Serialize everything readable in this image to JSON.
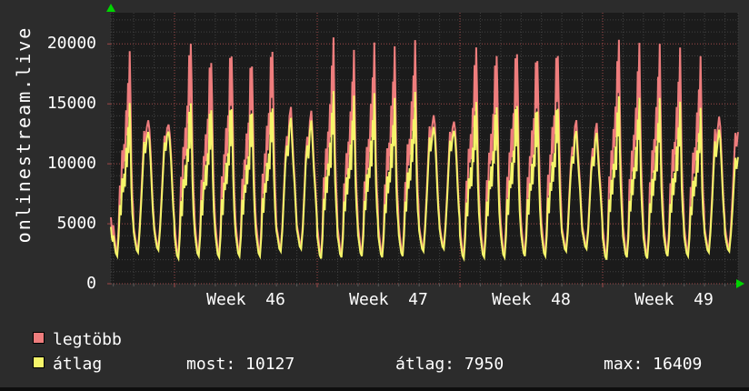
{
  "y_axis_title": "onlinestream.live",
  "legend": {
    "items": [
      {
        "label": "legtöbb",
        "color": "#ee7d7d"
      },
      {
        "label": "átlag",
        "color": "#f5f56a"
      }
    ]
  },
  "stats": {
    "items": [
      {
        "label": "most",
        "value": "10127",
        "text": "most: 10127"
      },
      {
        "label": "átlag",
        "value": "7950",
        "text": "átlag: 7950"
      },
      {
        "label": "max",
        "value": "16409",
        "text": "max: 16409"
      }
    ]
  },
  "chart_data": {
    "type": "line",
    "title": "onlinestream.live",
    "ylabel": "onlinestream.live",
    "ylim": [
      0,
      22600
    ],
    "grid": "dotted, minor every 1000 (gray), major every 5000 (red); vertical minor per day, major per week",
    "legend_position": "bottom-left",
    "y_ticks": [
      {
        "value": 0,
        "label": "0"
      },
      {
        "value": 5000,
        "label": "5000"
      },
      {
        "value": 10000,
        "label": "10000"
      },
      {
        "value": 15000,
        "label": "15000"
      },
      {
        "value": 20000,
        "label": "20000"
      }
    ],
    "y_minor_step": 1000,
    "x_week_labels": [
      "Week  46",
      "Week  47",
      "Week  48",
      "Week  49"
    ],
    "x_unit": "days (4.4 weeks shown, weekly red gridlines at Monday 00:00)",
    "series": [
      {
        "name": "legtöbb",
        "color": "#ee7d7d"
      },
      {
        "name": "átlag",
        "color": "#f5f56a"
      }
    ],
    "lead_in_day": {
      "weekend": false,
      "max_peak": 9000,
      "avg_peak": 7600,
      "trough": 2300
    },
    "days": [
      {
        "weekend": false,
        "max_peak": 18900,
        "avg_peak": 14700,
        "trough": 2300
      },
      {
        "weekend": true,
        "max_peak": 14100,
        "avg_peak": 13100,
        "trough": 2600
      },
      {
        "weekend": true,
        "max_peak": 13800,
        "avg_peak": 13200,
        "trough": 2800
      },
      {
        "weekend": false,
        "max_peak": 20500,
        "avg_peak": 15400,
        "trough": 2100
      },
      {
        "weekend": false,
        "max_peak": 19100,
        "avg_peak": 15000,
        "trough": 2300
      },
      {
        "weekend": false,
        "max_peak": 19800,
        "avg_peak": 15200,
        "trough": 2200
      },
      {
        "weekend": false,
        "max_peak": 18900,
        "avg_peak": 14800,
        "trough": 2300
      },
      {
        "weekend": false,
        "max_peak": 20000,
        "avg_peak": 15100,
        "trough": 2300
      },
      {
        "weekend": true,
        "max_peak": 14400,
        "avg_peak": 13500,
        "trough": 2700
      },
      {
        "weekend": true,
        "max_peak": 14100,
        "avg_peak": 13300,
        "trough": 2900
      },
      {
        "weekend": false,
        "max_peak": 20200,
        "avg_peak": 15800,
        "trough": 2100
      },
      {
        "weekend": false,
        "max_peak": 19000,
        "avg_peak": 15300,
        "trough": 2200
      },
      {
        "weekend": false,
        "max_peak": 19600,
        "avg_peak": 15500,
        "trough": 2300
      },
      {
        "weekend": false,
        "max_peak": 19300,
        "avg_peak": 15100,
        "trough": 2200
      },
      {
        "weekend": false,
        "max_peak": 19800,
        "avg_peak": 15600,
        "trough": 2300
      },
      {
        "weekend": true,
        "max_peak": 14400,
        "avg_peak": 13400,
        "trough": 2700
      },
      {
        "weekend": true,
        "max_peak": 14000,
        "avg_peak": 13200,
        "trough": 2900
      },
      {
        "weekend": false,
        "max_peak": 19900,
        "avg_peak": 15300,
        "trough": 2100
      },
      {
        "weekend": false,
        "max_peak": 19500,
        "avg_peak": 15100,
        "trough": 2200
      },
      {
        "weekend": false,
        "max_peak": 19900,
        "avg_peak": 15400,
        "trough": 2200
      },
      {
        "weekend": false,
        "max_peak": 19400,
        "avg_peak": 15000,
        "trough": 2300
      },
      {
        "weekend": false,
        "max_peak": 19800,
        "avg_peak": 15200,
        "trough": 2300
      },
      {
        "weekend": true,
        "max_peak": 13400,
        "avg_peak": 12500,
        "trough": 2700
      },
      {
        "weekend": true,
        "max_peak": 13100,
        "avg_peak": 12300,
        "trough": 2900
      },
      {
        "weekend": false,
        "max_peak": 20300,
        "avg_peak": 15600,
        "trough": 2000
      },
      {
        "weekend": false,
        "max_peak": 19700,
        "avg_peak": 15200,
        "trough": 2200
      },
      {
        "weekend": false,
        "max_peak": 19500,
        "avg_peak": 15100,
        "trough": 2100
      },
      {
        "weekend": false,
        "max_peak": 19200,
        "avg_peak": 14800,
        "trough": 2300
      },
      {
        "weekend": false,
        "max_peak": 18500,
        "avg_peak": 14300,
        "trough": 2300
      },
      {
        "weekend": true,
        "max_peak": 14100,
        "avg_peak": 13000,
        "trough": 2600
      },
      {
        "weekend": true,
        "max_peak": 13800,
        "avg_peak": 11500,
        "trough": 2700
      }
    ],
    "profiles": {
      "weekday": [
        [
          0.0,
          0.14
        ],
        [
          0.05,
          0.09
        ],
        [
          0.12,
          0.02
        ],
        [
          0.19,
          0.0
        ],
        [
          0.26,
          0.13
        ],
        [
          0.32,
          0.36
        ],
        [
          0.37,
          0.28
        ],
        [
          0.43,
          0.5
        ],
        [
          0.48,
          0.42
        ],
        [
          0.53,
          0.58
        ],
        [
          0.57,
          0.48
        ],
        [
          0.63,
          0.7
        ],
        [
          0.67,
          0.58
        ],
        [
          0.72,
          0.9
        ],
        [
          0.75,
          0.72
        ],
        [
          0.8,
          1.0
        ],
        [
          0.84,
          0.76
        ],
        [
          0.88,
          0.48
        ],
        [
          0.93,
          0.3
        ],
        [
          0.97,
          0.22
        ]
      ],
      "weekend": [
        [
          0.0,
          0.16
        ],
        [
          0.06,
          0.1
        ],
        [
          0.14,
          0.02
        ],
        [
          0.21,
          0.0
        ],
        [
          0.29,
          0.16
        ],
        [
          0.37,
          0.42
        ],
        [
          0.44,
          0.66
        ],
        [
          0.51,
          0.85
        ],
        [
          0.57,
          0.76
        ],
        [
          0.64,
          0.93
        ],
        [
          0.71,
          1.0
        ],
        [
          0.77,
          0.87
        ],
        [
          0.83,
          0.68
        ],
        [
          0.89,
          0.5
        ],
        [
          0.94,
          0.34
        ],
        [
          0.98,
          0.24
        ]
      ]
    }
  }
}
